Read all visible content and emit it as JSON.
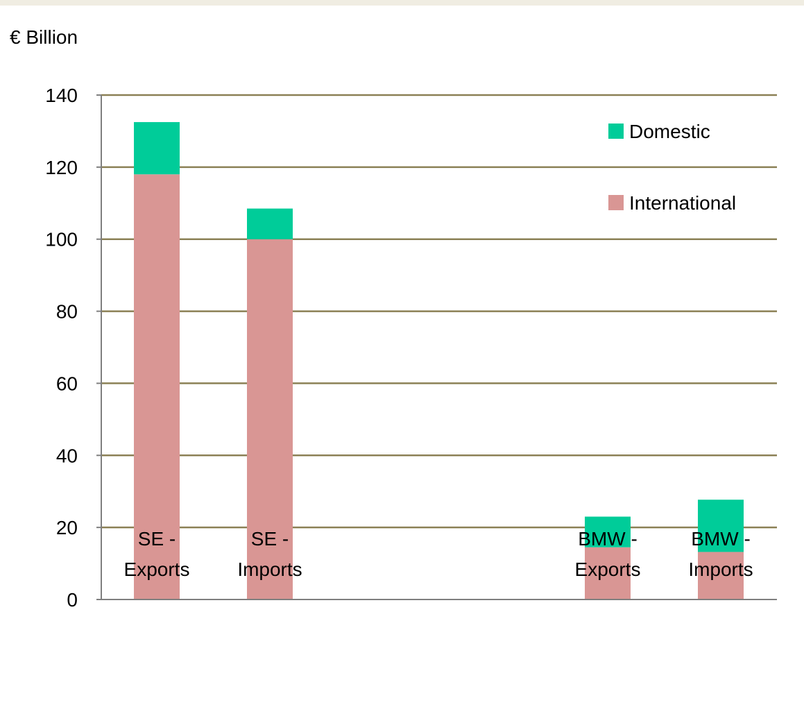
{
  "chart_data": {
    "type": "bar",
    "stacked": true,
    "ylabel": "€ Billion",
    "ylim": [
      0,
      140
    ],
    "yticks": [
      0,
      20,
      40,
      60,
      80,
      100,
      120,
      140
    ],
    "grid": true,
    "legend_position": "top-right",
    "categories": [
      [
        "SE -",
        "Exports"
      ],
      [
        "SE -",
        "Imports"
      ],
      [
        "BMW -",
        "Exports"
      ],
      [
        "BMW -",
        "Imports"
      ]
    ],
    "series": [
      {
        "name": "International",
        "color": "#d99694",
        "values": [
          118,
          100,
          14.5,
          13.2
        ]
      },
      {
        "name": "Domestic",
        "color": "#00cc99",
        "values": [
          14.5,
          8.5,
          8.5,
          14.5
        ]
      }
    ],
    "legend_order": [
      "Domestic",
      "International"
    ],
    "colors": {
      "gridline": "#8b8055",
      "axis": "#7f7f7f",
      "band": "#f0ede2"
    }
  }
}
